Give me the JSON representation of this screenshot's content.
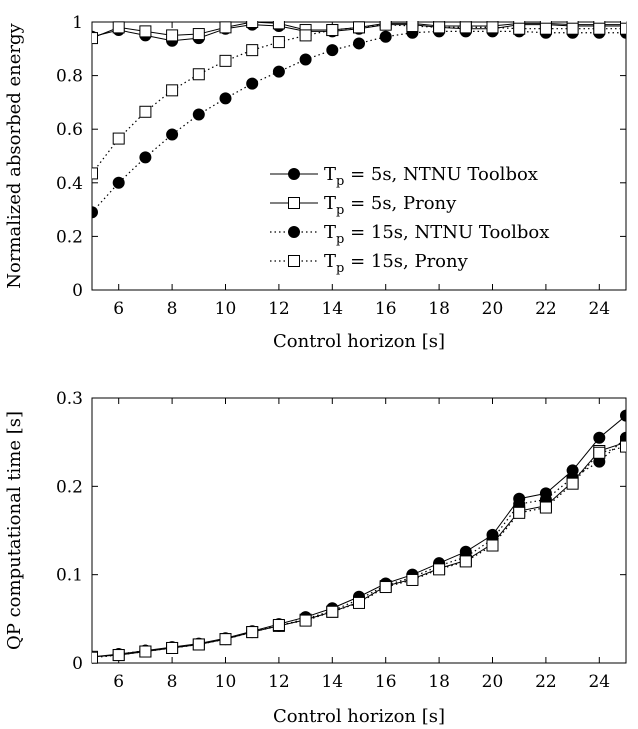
{
  "chart_data": [
    {
      "type": "line",
      "title": "",
      "xlabel": "Control horizon [s]",
      "ylabel": "Normalized absorbed energy",
      "xlim": [
        5,
        25
      ],
      "ylim": [
        0,
        1
      ],
      "xticks": [
        6,
        8,
        10,
        12,
        14,
        16,
        18,
        20,
        22,
        24
      ],
      "yticks": [
        0,
        0.2,
        0.4,
        0.6,
        0.8,
        1
      ],
      "grid": false,
      "legend_position": "center-right",
      "x": [
        5,
        6,
        7,
        8,
        9,
        10,
        11,
        12,
        13,
        14,
        15,
        16,
        17,
        18,
        19,
        20,
        21,
        22,
        23,
        24,
        25
      ],
      "series": [
        {
          "name": "T_p = 5s, NTNU Toolbox",
          "legend": {
            "main": "T",
            "sub": "p",
            "rest": " = 5s, NTNU Toolbox"
          },
          "line": "solid",
          "marker": "filled-circle",
          "values": [
            0.945,
            0.97,
            0.95,
            0.93,
            0.94,
            0.975,
            0.99,
            0.985,
            0.965,
            0.965,
            0.975,
            0.99,
            0.99,
            0.98,
            0.975,
            0.975,
            0.99,
            0.99,
            0.985,
            0.985,
            0.985
          ]
        },
        {
          "name": "T_p = 5s, Prony",
          "legend": {
            "main": "T",
            "sub": "p",
            "rest": " = 5s, Prony"
          },
          "line": "solid",
          "marker": "open-square",
          "values": [
            0.94,
            0.98,
            0.965,
            0.95,
            0.955,
            0.98,
            1.0,
            0.995,
            0.97,
            0.97,
            0.98,
            0.995,
            0.995,
            0.985,
            0.985,
            0.985,
            0.995,
            0.995,
            0.99,
            0.99,
            0.99
          ]
        },
        {
          "name": "T_p = 15s, NTNU Toolbox",
          "legend": {
            "main": "T",
            "sub": "p",
            "rest": " = 15s, NTNU Toolbox"
          },
          "line": "dotted",
          "marker": "filled-circle",
          "values": [
            0.29,
            0.4,
            0.495,
            0.58,
            0.655,
            0.715,
            0.77,
            0.815,
            0.86,
            0.895,
            0.92,
            0.945,
            0.96,
            0.965,
            0.965,
            0.965,
            0.965,
            0.96,
            0.96,
            0.96,
            0.96
          ]
        },
        {
          "name": "T_p = 15s, Prony",
          "legend": {
            "main": "T",
            "sub": "p",
            "rest": " = 15s, Prony"
          },
          "line": "dotted",
          "marker": "open-square",
          "values": [
            0.435,
            0.565,
            0.665,
            0.745,
            0.805,
            0.855,
            0.895,
            0.925,
            0.95,
            0.97,
            0.98,
            0.99,
            0.985,
            0.98,
            0.98,
            0.98,
            0.975,
            0.975,
            0.975,
            0.975,
            0.975
          ]
        }
      ]
    },
    {
      "type": "line",
      "title": "",
      "xlabel": "Control horizon [s]",
      "ylabel": "QP computational time [s]",
      "xlim": [
        5,
        25
      ],
      "ylim": [
        0,
        0.3
      ],
      "xticks": [
        6,
        8,
        10,
        12,
        14,
        16,
        18,
        20,
        22,
        24
      ],
      "yticks": [
        0,
        0.1,
        0.2,
        0.3
      ],
      "grid": false,
      "x": [
        5,
        6,
        7,
        8,
        9,
        10,
        11,
        12,
        13,
        14,
        15,
        16,
        17,
        18,
        19,
        20,
        21,
        22,
        23,
        24,
        25
      ],
      "series": [
        {
          "line": "solid",
          "marker": "filled-circle",
          "values": [
            0.007,
            0.01,
            0.014,
            0.018,
            0.022,
            0.028,
            0.036,
            0.044,
            0.052,
            0.062,
            0.075,
            0.09,
            0.1,
            0.113,
            0.126,
            0.145,
            0.186,
            0.192,
            0.218,
            0.255,
            0.28
          ]
        },
        {
          "line": "solid",
          "marker": "open-square",
          "values": [
            0.007,
            0.009,
            0.013,
            0.017,
            0.021,
            0.027,
            0.035,
            0.042,
            0.049,
            0.058,
            0.069,
            0.087,
            0.095,
            0.107,
            0.116,
            0.135,
            0.172,
            0.178,
            0.205,
            0.24,
            0.25
          ]
        },
        {
          "line": "dotted",
          "marker": "filled-circle",
          "values": [
            0.006,
            0.01,
            0.014,
            0.017,
            0.021,
            0.027,
            0.035,
            0.042,
            0.05,
            0.059,
            0.072,
            0.088,
            0.097,
            0.11,
            0.12,
            0.14,
            0.18,
            0.185,
            0.21,
            0.228,
            0.255
          ]
        },
        {
          "line": "dotted",
          "marker": "open-square",
          "values": [
            0.006,
            0.009,
            0.013,
            0.017,
            0.021,
            0.027,
            0.035,
            0.043,
            0.048,
            0.058,
            0.068,
            0.086,
            0.094,
            0.106,
            0.115,
            0.133,
            0.17,
            0.176,
            0.203,
            0.238,
            0.245
          ]
        }
      ]
    }
  ]
}
